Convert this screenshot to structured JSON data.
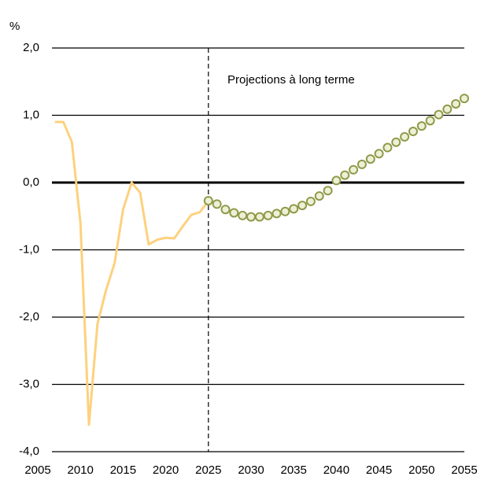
{
  "chart_data": {
    "type": "line",
    "y_unit_label": "%",
    "annotation": "Projections à long terme",
    "projection_start": 2025,
    "xlim": [
      2005,
      2055
    ],
    "xticks": [
      2005,
      2010,
      2015,
      2020,
      2025,
      2030,
      2035,
      2040,
      2045,
      2050,
      2055
    ],
    "ylim": [
      -4,
      2
    ],
    "yticks": [
      {
        "value": -4,
        "label": "-4,0"
      },
      {
        "value": -3,
        "label": "-3,0"
      },
      {
        "value": -2,
        "label": "-2,0"
      },
      {
        "value": -1,
        "label": "-1,0"
      },
      {
        "value": 0,
        "label": "0,0"
      },
      {
        "value": 1,
        "label": "1,0"
      },
      {
        "value": 2,
        "label": "2,0"
      }
    ],
    "grid": true,
    "series": [
      {
        "style": "line",
        "color": "#fdd17e",
        "x": [
          2007,
          2008,
          2009,
          2010,
          2011,
          2012,
          2013,
          2014,
          2015,
          2016,
          2017,
          2018,
          2019,
          2020,
          2021,
          2022,
          2023,
          2024,
          2025
        ],
        "values": [
          0.9,
          0.9,
          0.6,
          -0.6,
          -3.6,
          -2.1,
          -1.6,
          -1.2,
          -0.4,
          0.0,
          -0.15,
          -0.92,
          -0.85,
          -0.82,
          -0.83,
          -0.65,
          -0.48,
          -0.44,
          -0.27
        ]
      },
      {
        "style": "markers",
        "color": "#8f9a4a",
        "x": [
          2025,
          2026,
          2027,
          2028,
          2029,
          2030,
          2031,
          2032,
          2033,
          2034,
          2035,
          2036,
          2037,
          2038,
          2039,
          2040,
          2041,
          2042,
          2043,
          2044,
          2045,
          2046,
          2047,
          2048,
          2049,
          2050,
          2051,
          2052,
          2053,
          2054,
          2055
        ],
        "values": [
          -0.27,
          -0.32,
          -0.4,
          -0.45,
          -0.49,
          -0.51,
          -0.51,
          -0.49,
          -0.46,
          -0.43,
          -0.39,
          -0.34,
          -0.28,
          -0.2,
          -0.12,
          0.03,
          0.11,
          0.19,
          0.27,
          0.35,
          0.43,
          0.52,
          0.6,
          0.68,
          0.76,
          0.84,
          0.92,
          1.01,
          1.09,
          1.17,
          1.25
        ]
      }
    ]
  }
}
